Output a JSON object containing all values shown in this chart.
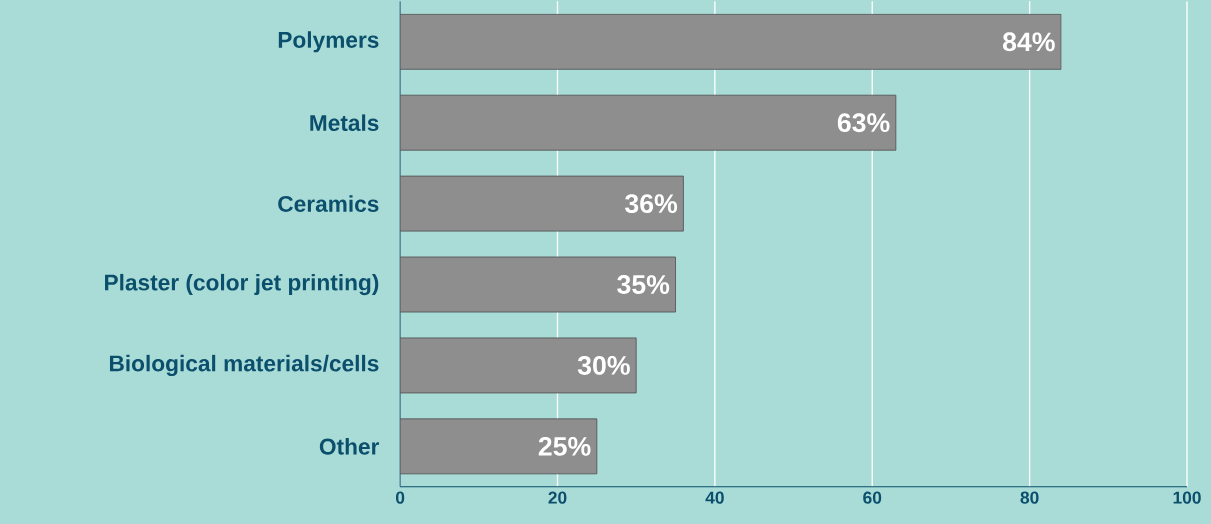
{
  "chart_data": {
    "type": "bar",
    "orientation": "horizontal",
    "categories": [
      "Polymers",
      "Metals",
      "Ceramics",
      "Plaster (color jet printing)",
      "Biological materials/cells",
      "Other"
    ],
    "values": [
      84,
      63,
      36,
      35,
      30,
      25
    ],
    "value_labels": [
      "84%",
      "63%",
      "36%",
      "35%",
      "30%",
      "25%"
    ],
    "color": "#8e8e8e",
    "xlim": [
      0,
      100
    ],
    "xticks": [
      0,
      20,
      40,
      60,
      80,
      100
    ],
    "grid": "x"
  }
}
